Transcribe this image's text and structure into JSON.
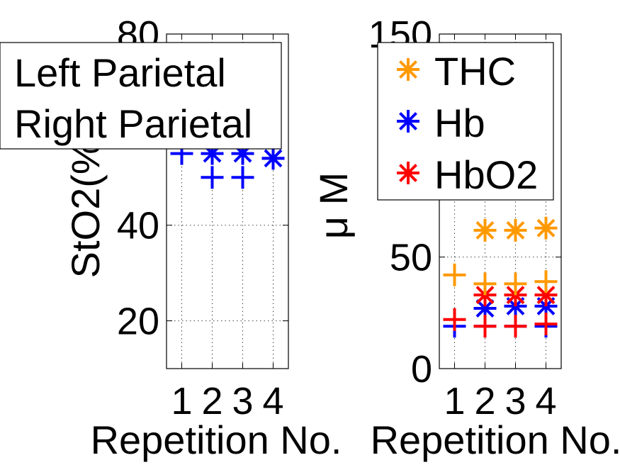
{
  "chart_data": [
    {
      "type": "scatter",
      "ylabel": "StO2(%)",
      "xlabel": "Repetition No.",
      "ylim": [
        10,
        80
      ],
      "xlim": [
        0.5,
        4.5
      ],
      "x_ticks": [
        "1",
        "2",
        "3",
        "4"
      ],
      "y_ticks": [
        "20",
        "40",
        "80"
      ],
      "grid": true,
      "legend": {
        "placement": "top-left",
        "entries": [
          "Left Parietal",
          "Right Parietal"
        ]
      },
      "series": [
        {
          "marker": "asterisk",
          "color": "#0000ff",
          "points": [
            [
              2,
              55
            ],
            [
              3,
              55
            ],
            [
              4,
              54
            ]
          ]
        },
        {
          "marker": "plus",
          "color": "#0000ff",
          "points": [
            [
              1,
              55
            ],
            [
              2,
              50
            ],
            [
              3,
              50
            ],
            [
              4,
              54
            ]
          ]
        }
      ]
    },
    {
      "type": "scatter",
      "ylabel": "μ M",
      "xlabel": "Repetition No.",
      "ylim": [
        0,
        150
      ],
      "xlim": [
        0.5,
        4.5
      ],
      "x_ticks": [
        "1",
        "2",
        "3",
        "4"
      ],
      "y_ticks": [
        "0",
        "50",
        "150"
      ],
      "grid": true,
      "legend": {
        "placement": "top-left",
        "entries": [
          "THC",
          "Hb",
          "HbO2"
        ]
      },
      "series": [
        {
          "name": "THC",
          "marker": "asterisk",
          "color": "#ff9900",
          "points": [
            [
              2,
              62
            ],
            [
              3,
              62
            ],
            [
              4,
              63
            ]
          ]
        },
        {
          "name": "Hb",
          "marker": "asterisk",
          "color": "#0000ff",
          "points": [
            [
              2,
              27
            ],
            [
              3,
              28
            ],
            [
              4,
              28
            ]
          ]
        },
        {
          "name": "HbO2",
          "marker": "asterisk",
          "color": "#ff0000",
          "points": [
            [
              2,
              33
            ],
            [
              3,
              33
            ],
            [
              4,
              33
            ]
          ]
        },
        {
          "marker": "plus",
          "color": "#ff9900",
          "points": [
            [
              1,
              42
            ],
            [
              2,
              38
            ],
            [
              3,
              38
            ],
            [
              4,
              39
            ]
          ]
        },
        {
          "marker": "plus",
          "color": "#0000ff",
          "points": [
            [
              1,
              19
            ],
            [
              2,
              19
            ],
            [
              3,
              19
            ],
            [
              4,
              19
            ]
          ]
        },
        {
          "marker": "plus",
          "color": "#ff0000",
          "points": [
            [
              1,
              22
            ],
            [
              2,
              19
            ],
            [
              3,
              19
            ],
            [
              4,
              20
            ]
          ]
        }
      ]
    }
  ]
}
